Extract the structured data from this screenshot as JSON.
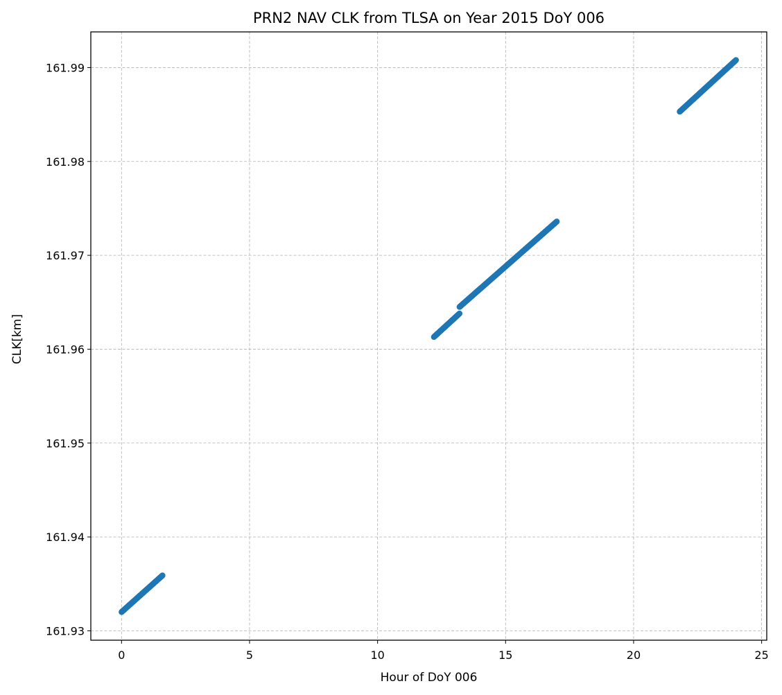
{
  "chart_data": {
    "type": "scatter",
    "title": "PRN2 NAV CLK from TLSA on Year 2015 DoY 006",
    "xlabel": "Hour of DoY 006",
    "ylabel": "CLK[km]",
    "xlim": [
      -1.2,
      25.2
    ],
    "ylim": [
      161.929,
      161.9938
    ],
    "xticks": [
      0,
      5,
      10,
      15,
      20,
      25
    ],
    "xtick_labels": [
      "0",
      "5",
      "10",
      "15",
      "20",
      "25"
    ],
    "yticks": [
      161.93,
      161.94,
      161.95,
      161.96,
      161.97,
      161.98,
      161.99
    ],
    "ytick_labels": [
      "161.93",
      "161.94",
      "161.95",
      "161.96",
      "161.97",
      "161.98",
      "161.99"
    ],
    "grid": true,
    "legend": "none",
    "marker_color": "#1f77b4",
    "series": [
      {
        "segments": [
          {
            "x_start": 0.0,
            "x_end": 1.6,
            "y_start": 161.932,
            "y_end": 161.9359
          },
          {
            "x_start": 12.2,
            "x_end": 13.2,
            "y_start": 161.9613,
            "y_end": 161.9638
          },
          {
            "x_start": 13.2,
            "x_end": 17.0,
            "y_start": 161.9645,
            "y_end": 161.9736
          },
          {
            "x_start": 21.8,
            "x_end": 24.0,
            "y_start": 161.9853,
            "y_end": 161.9908
          }
        ],
        "sample_step_hours": 0.0083
      }
    ]
  }
}
